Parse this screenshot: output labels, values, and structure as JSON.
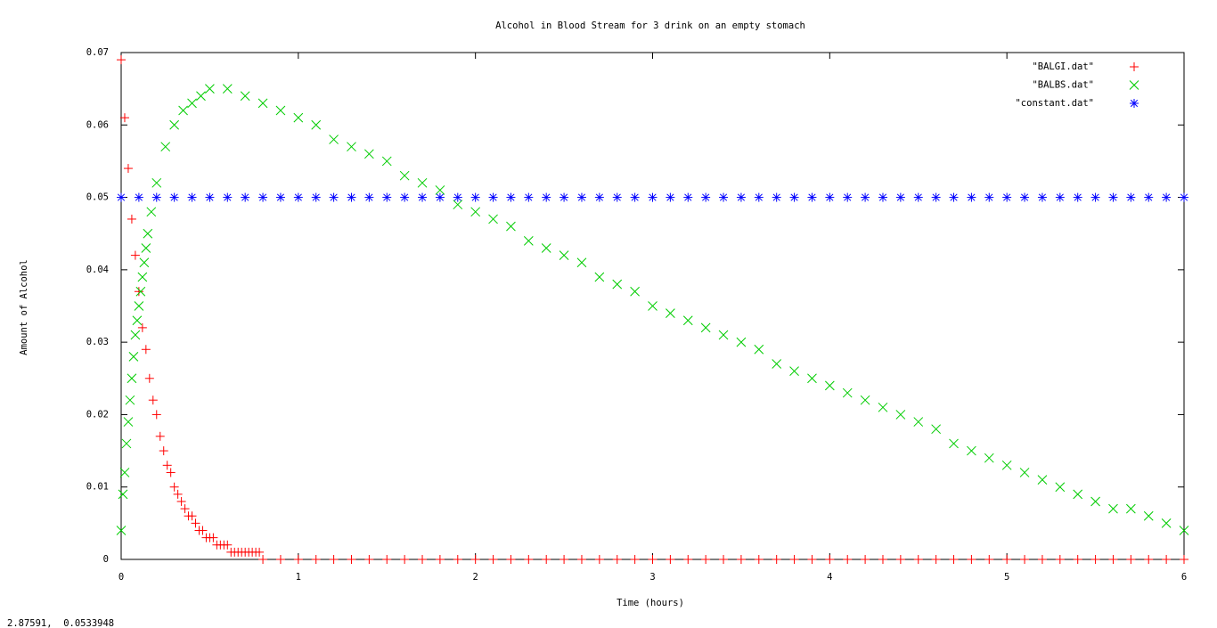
{
  "chart_data": {
    "type": "scatter",
    "title": "Alcohol in Blood Stream for 3 drink on an empty stomach",
    "xlabel": "Time (hours)",
    "ylabel": "Amount of Alcohol",
    "status": "2.87591,  0.0533948",
    "xlim": [
      0,
      6
    ],
    "xticks": [
      0,
      1,
      2,
      3,
      4,
      5,
      6
    ],
    "ylim": [
      0,
      0.07
    ],
    "yticks": [
      0,
      0.01,
      0.02,
      0.03,
      0.04,
      0.05,
      0.06,
      0.07
    ],
    "legend": "top-right",
    "grid": false,
    "series": [
      {
        "name": "\"BALGI.dat\"",
        "color": "#ff0000",
        "marker": "plus",
        "x": [
          0,
          0.02,
          0.04,
          0.06,
          0.08,
          0.1,
          0.12,
          0.14,
          0.16,
          0.18,
          0.2,
          0.22,
          0.24,
          0.26,
          0.28,
          0.3,
          0.32,
          0.34,
          0.36,
          0.38,
          0.4,
          0.42,
          0.44,
          0.46,
          0.48,
          0.5,
          0.52,
          0.54,
          0.56,
          0.58,
          0.6,
          0.62,
          0.64,
          0.66,
          0.68,
          0.7,
          0.72,
          0.74,
          0.76,
          0.78,
          0.8,
          0.9,
          1,
          1.1,
          1.2,
          1.3,
          1.4,
          1.5,
          1.6,
          1.7,
          1.8,
          1.9,
          2,
          2.1,
          2.2,
          2.3,
          2.4,
          2.5,
          2.6,
          2.7,
          2.8,
          2.9,
          3,
          3.1,
          3.2,
          3.3,
          3.4,
          3.5,
          3.6,
          3.7,
          3.8,
          3.9,
          4,
          4.1,
          4.2,
          4.3,
          4.4,
          4.5,
          4.6,
          4.7,
          4.8,
          4.9,
          5,
          5.1,
          5.2,
          5.3,
          5.4,
          5.5,
          5.6,
          5.7,
          5.8,
          5.9,
          6
        ],
        "values": [
          0.069,
          0.061,
          0.054,
          0.047,
          0.042,
          0.037,
          0.032,
          0.029,
          0.025,
          0.022,
          0.02,
          0.017,
          0.015,
          0.013,
          0.012,
          0.01,
          0.009,
          0.008,
          0.007,
          0.006,
          0.006,
          0.005,
          0.004,
          0.004,
          0.003,
          0.003,
          0.003,
          0.002,
          0.002,
          0.002,
          0.002,
          0.001,
          0.001,
          0.001,
          0.001,
          0.001,
          0.001,
          0.001,
          0.001,
          0.001,
          0,
          0,
          0,
          0,
          0,
          0,
          0,
          0,
          0,
          0,
          0,
          0,
          0,
          0,
          0,
          0,
          0,
          0,
          0,
          0,
          0,
          0,
          0,
          0,
          0,
          0,
          0,
          0,
          0,
          0,
          0,
          0,
          0,
          0,
          0,
          0,
          0,
          0,
          0,
          0,
          0,
          0,
          0,
          0,
          0,
          0,
          0,
          0,
          0,
          0,
          0,
          0,
          0
        ]
      },
      {
        "name": "\"BALBS.dat\"",
        "color": "#00cc00",
        "marker": "cross",
        "x": [
          0,
          0.01,
          0.02,
          0.03,
          0.04,
          0.05,
          0.06,
          0.07,
          0.08,
          0.09,
          0.1,
          0.11,
          0.12,
          0.13,
          0.14,
          0.15,
          0.17,
          0.2,
          0.25,
          0.3,
          0.35,
          0.4,
          0.45,
          0.5,
          0.6,
          0.7,
          0.8,
          0.9,
          1,
          1.1,
          1.2,
          1.3,
          1.4,
          1.5,
          1.6,
          1.7,
          1.8,
          1.9,
          2,
          2.1,
          2.2,
          2.3,
          2.4,
          2.5,
          2.6,
          2.7,
          2.8,
          2.9,
          3,
          3.1,
          3.2,
          3.3,
          3.4,
          3.5,
          3.6,
          3.7,
          3.8,
          3.9,
          4,
          4.1,
          4.2,
          4.3,
          4.4,
          4.5,
          4.6,
          4.7,
          4.8,
          4.9,
          5,
          5.1,
          5.2,
          5.3,
          5.4,
          5.5,
          5.6,
          5.7,
          5.8,
          5.9,
          6
        ],
        "values": [
          0.004,
          0.009,
          0.012,
          0.016,
          0.019,
          0.022,
          0.025,
          0.028,
          0.031,
          0.033,
          0.035,
          0.037,
          0.039,
          0.041,
          0.043,
          0.045,
          0.048,
          0.052,
          0.057,
          0.06,
          0.062,
          0.063,
          0.064,
          0.065,
          0.065,
          0.064,
          0.063,
          0.062,
          0.061,
          0.06,
          0.058,
          0.057,
          0.056,
          0.055,
          0.053,
          0.052,
          0.051,
          0.049,
          0.048,
          0.047,
          0.046,
          0.044,
          0.043,
          0.042,
          0.041,
          0.039,
          0.038,
          0.037,
          0.035,
          0.034,
          0.033,
          0.032,
          0.031,
          0.03,
          0.029,
          0.027,
          0.026,
          0.025,
          0.024,
          0.023,
          0.022,
          0.021,
          0.02,
          0.019,
          0.018,
          0.016,
          0.015,
          0.014,
          0.013,
          0.012,
          0.011,
          0.01,
          0.009,
          0.008,
          0.007,
          0.007,
          0.006,
          0.005,
          0.004
        ]
      },
      {
        "name": "\"constant.dat\"",
        "color": "#0000ff",
        "marker": "star",
        "x": [
          0,
          0.1,
          0.2,
          0.3,
          0.4,
          0.5,
          0.6,
          0.7,
          0.8,
          0.9,
          1,
          1.1,
          1.2,
          1.3,
          1.4,
          1.5,
          1.6,
          1.7,
          1.8,
          1.9,
          2,
          2.1,
          2.2,
          2.3,
          2.4,
          2.5,
          2.6,
          2.7,
          2.8,
          2.9,
          3,
          3.1,
          3.2,
          3.3,
          3.4,
          3.5,
          3.6,
          3.7,
          3.8,
          3.9,
          4,
          4.1,
          4.2,
          4.3,
          4.4,
          4.5,
          4.6,
          4.7,
          4.8,
          4.9,
          5,
          5.1,
          5.2,
          5.3,
          5.4,
          5.5,
          5.6,
          5.7,
          5.8,
          5.9,
          6
        ],
        "values": [
          0.05,
          0.05,
          0.05,
          0.05,
          0.05,
          0.05,
          0.05,
          0.05,
          0.05,
          0.05,
          0.05,
          0.05,
          0.05,
          0.05,
          0.05,
          0.05,
          0.05,
          0.05,
          0.05,
          0.05,
          0.05,
          0.05,
          0.05,
          0.05,
          0.05,
          0.05,
          0.05,
          0.05,
          0.05,
          0.05,
          0.05,
          0.05,
          0.05,
          0.05,
          0.05,
          0.05,
          0.05,
          0.05,
          0.05,
          0.05,
          0.05,
          0.05,
          0.05,
          0.05,
          0.05,
          0.05,
          0.05,
          0.05,
          0.05,
          0.05,
          0.05,
          0.05,
          0.05,
          0.05,
          0.05,
          0.05,
          0.05,
          0.05,
          0.05,
          0.05,
          0.05
        ]
      }
    ]
  }
}
